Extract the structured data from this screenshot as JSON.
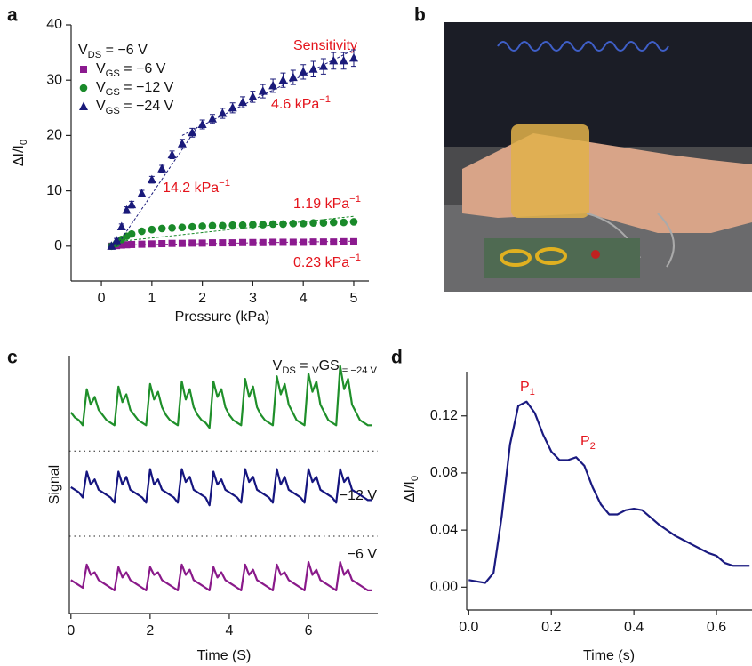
{
  "photo": {
    "label": "b"
  },
  "chart_data": [
    {
      "type": "scatter",
      "label": "a",
      "x_label": "Pressure (kPa)",
      "y_label": [
        "ΔI/I",
        "0"
      ],
      "xlim": [
        -0.6,
        5.3
      ],
      "xticks": [
        0,
        1,
        2,
        3,
        4,
        5
      ],
      "ylim": [
        -6.3,
        40
      ],
      "yticks": [
        0,
        10,
        20,
        30,
        40
      ],
      "legend_title": [
        "V",
        "DS",
        " = −6 V"
      ],
      "x": [
        0.2,
        0.3,
        0.4,
        0.5,
        0.6,
        0.8,
        1.0,
        1.2,
        1.4,
        1.6,
        1.8,
        2.0,
        2.2,
        2.4,
        2.6,
        2.8,
        3.0,
        3.2,
        3.4,
        3.6,
        3.8,
        4.0,
        4.2,
        4.4,
        4.6,
        4.8,
        5.0
      ],
      "series": [
        {
          "name": [
            "V",
            "GS",
            " = −6 V"
          ],
          "color": "#8b1a8f",
          "marker": "square",
          "values": [
            0,
            0.1,
            0.2,
            0.25,
            0.3,
            0.35,
            0.4,
            0.45,
            0.5,
            0.5,
            0.55,
            0.55,
            0.6,
            0.6,
            0.6,
            0.65,
            0.65,
            0.65,
            0.7,
            0.7,
            0.7,
            0.7,
            0.75,
            0.75,
            0.75,
            0.8,
            0.8
          ],
          "fit": {
            "x": [
              0.3,
              5.0
            ],
            "y": [
              0.2,
              0.9
            ]
          }
        },
        {
          "name": [
            "V",
            "GS",
            " = −12 V"
          ],
          "color": "#1a8a2a",
          "marker": "circle",
          "values": [
            0,
            0.5,
            1.2,
            1.8,
            2.2,
            2.7,
            3.0,
            3.2,
            3.3,
            3.4,
            3.5,
            3.6,
            3.7,
            3.7,
            3.8,
            3.8,
            3.9,
            3.9,
            4.0,
            4.0,
            4.1,
            4.1,
            4.2,
            4.2,
            4.3,
            4.3,
            4.4
          ],
          "fit": {
            "x": [
              0.3,
              5.0
            ],
            "y": [
              0.8,
              5.4
            ]
          }
        },
        {
          "name": [
            "V",
            "GS",
            " = −24 V"
          ],
          "color": "#1a1a7a",
          "marker": "triangle",
          "values": [
            0,
            1,
            3.5,
            6.5,
            7.5,
            9.5,
            12,
            14,
            16.5,
            18.5,
            20.5,
            22,
            23,
            24,
            25,
            26,
            27,
            28,
            29,
            30,
            30.5,
            31.5,
            32,
            32.5,
            33.5,
            33.5,
            34
          ],
          "errors": [
            0.3,
            0.4,
            0.5,
            0.6,
            0.6,
            0.6,
            0.6,
            0.6,
            0.7,
            0.8,
            0.8,
            0.8,
            0.8,
            0.9,
            0.9,
            1,
            1,
            1.2,
            1.2,
            1.3,
            1.3,
            1.3,
            1.4,
            1.4,
            1.5,
            1.5,
            1.5
          ],
          "fit": {
            "x": [
              0.3,
              1.9
            ],
            "y": [
              0,
              21.5
            ]
          },
          "fit2": {
            "x": [
              1.6,
              5.0
            ],
            "y": [
              20,
              35.5
            ]
          }
        }
      ],
      "annotations": [
        [
          "Sensitivity"
        ],
        [
          "4.6 kPa",
          "−1"
        ],
        [
          "14.2 kPa",
          "−1"
        ],
        [
          "1.19 kPa",
          "−1"
        ],
        [
          "0.23 kPa",
          "−1"
        ]
      ]
    },
    {
      "type": "line",
      "label": "c",
      "x_label": "Time (S)",
      "y_label": [
        "Signal"
      ],
      "xlim": [
        -0.04,
        7.75
      ],
      "xticks": [
        0,
        2,
        4,
        6
      ],
      "ylim": [
        0,
        10
      ],
      "hlines": [
        6.3,
        3.0
      ],
      "x": [
        0,
        0.1,
        0.2,
        0.3,
        0.4,
        0.5,
        0.6,
        0.7,
        0.8,
        0.9,
        1.0,
        1.1,
        1.2,
        1.3,
        1.4,
        1.5,
        1.6,
        1.7,
        1.8,
        1.9,
        2.0,
        2.1,
        2.2,
        2.3,
        2.4,
        2.5,
        2.6,
        2.7,
        2.8,
        2.9,
        3.0,
        3.1,
        3.2,
        3.3,
        3.4,
        3.5,
        3.6,
        3.7,
        3.8,
        3.9,
        4.0,
        4.1,
        4.2,
        4.3,
        4.4,
        4.5,
        4.6,
        4.7,
        4.8,
        4.9,
        5.0,
        5.1,
        5.2,
        5.3,
        5.4,
        5.5,
        5.6,
        5.7,
        5.8,
        5.9,
        6.0,
        6.1,
        6.2,
        6.3,
        6.4,
        6.5,
        6.6,
        6.7,
        6.8,
        6.9,
        7.0,
        7.1,
        7.2,
        7.3,
        7.4,
        7.5,
        7.6
      ],
      "series": [
        {
          "color": "#1f8f2a",
          "values": [
            7.8,
            7.6,
            7.5,
            7.3,
            8.7,
            8.1,
            8.4,
            7.9,
            7.7,
            7.5,
            7.4,
            7.3,
            8.8,
            8.2,
            8.5,
            7.9,
            7.7,
            7.5,
            7.4,
            7.3,
            8.9,
            8.3,
            8.6,
            8.0,
            7.7,
            7.5,
            7.4,
            7.3,
            9.0,
            8.3,
            8.7,
            8.0,
            7.7,
            7.5,
            7.4,
            7.2,
            9.0,
            8.4,
            8.7,
            8.0,
            7.7,
            7.5,
            7.4,
            7.3,
            9.1,
            8.4,
            8.8,
            8.0,
            7.7,
            7.5,
            7.4,
            7.3,
            9.2,
            8.5,
            8.9,
            8.1,
            7.8,
            7.5,
            7.4,
            7.3,
            9.3,
            8.6,
            9.0,
            8.1,
            7.8,
            7.5,
            7.4,
            7.3,
            9.6,
            8.7,
            9.1,
            8.1,
            7.8,
            7.5,
            7.4,
            7.3,
            7.3
          ]
        },
        {
          "color": "#15157f",
          "values": [
            4.9,
            4.8,
            4.7,
            4.5,
            5.5,
            5.0,
            5.2,
            4.8,
            4.7,
            4.6,
            4.5,
            4.3,
            5.5,
            5.0,
            5.3,
            4.8,
            4.7,
            4.6,
            4.5,
            4.3,
            5.6,
            5.0,
            5.2,
            4.8,
            4.7,
            4.6,
            4.5,
            4.3,
            5.6,
            5.1,
            5.3,
            4.8,
            4.7,
            4.6,
            4.5,
            4.2,
            5.5,
            5.0,
            5.2,
            4.8,
            4.7,
            4.6,
            4.5,
            4.3,
            5.6,
            5.1,
            5.3,
            4.8,
            4.7,
            4.6,
            4.5,
            4.3,
            5.6,
            5.0,
            5.3,
            4.8,
            4.7,
            4.6,
            4.5,
            4.3,
            5.6,
            5.1,
            5.3,
            4.8,
            4.7,
            4.6,
            4.5,
            4.3,
            5.6,
            5.1,
            5.3,
            4.8,
            4.7,
            4.6,
            4.5,
            4.4,
            4.4
          ]
        },
        {
          "color": "#8a1a8a",
          "values": [
            1.3,
            1.2,
            1.1,
            1.0,
            1.9,
            1.5,
            1.6,
            1.3,
            1.2,
            1.1,
            1.0,
            0.9,
            1.8,
            1.4,
            1.6,
            1.3,
            1.2,
            1.1,
            1.0,
            0.9,
            1.8,
            1.5,
            1.6,
            1.3,
            1.2,
            1.1,
            1.0,
            0.9,
            1.9,
            1.5,
            1.7,
            1.3,
            1.2,
            1.1,
            1.0,
            0.9,
            1.8,
            1.4,
            1.6,
            1.3,
            1.2,
            1.1,
            1.0,
            0.9,
            1.9,
            1.5,
            1.7,
            1.3,
            1.2,
            1.1,
            1.0,
            0.9,
            1.9,
            1.5,
            1.6,
            1.3,
            1.2,
            1.1,
            1.0,
            0.9,
            2.0,
            1.5,
            1.7,
            1.3,
            1.2,
            1.1,
            1.0,
            0.9,
            2.0,
            1.5,
            1.7,
            1.3,
            1.2,
            1.1,
            1.0,
            0.9,
            0.9
          ]
        }
      ],
      "annotations": [
        [
          "V",
          "DS",
          " = ",
          "V",
          "GS",
          " = −24 V"
        ],
        [
          "−12 V"
        ],
        [
          "−6 V"
        ]
      ]
    },
    {
      "type": "line",
      "label": "d",
      "x_label": "Time (s)",
      "y_label": [
        "ΔI/I",
        "0"
      ],
      "xlim": [
        -0.005,
        0.686
      ],
      "xticks": [
        {
          "value": 0,
          "label": "0.0"
        },
        0.2,
        0.4,
        0.6
      ],
      "ylim": [
        -0.016,
        0.151
      ],
      "yticks": [
        {
          "value": 0,
          "label": "0.00"
        },
        0.04,
        0.08,
        0.12
      ],
      "x": [
        0,
        0.02,
        0.04,
        0.06,
        0.08,
        0.1,
        0.12,
        0.14,
        0.16,
        0.18,
        0.2,
        0.22,
        0.24,
        0.26,
        0.28,
        0.3,
        0.32,
        0.34,
        0.36,
        0.38,
        0.4,
        0.42,
        0.44,
        0.46,
        0.48,
        0.5,
        0.52,
        0.54,
        0.56,
        0.58,
        0.6,
        0.62,
        0.64,
        0.66,
        0.68
      ],
      "series": [
        {
          "color": "#1a1a80",
          "values": [
            0.005,
            0.004,
            0.003,
            0.01,
            0.05,
            0.1,
            0.127,
            0.13,
            0.122,
            0.107,
            0.095,
            0.089,
            0.089,
            0.091,
            0.085,
            0.07,
            0.058,
            0.051,
            0.051,
            0.054,
            0.055,
            0.054,
            0.049,
            0.044,
            0.04,
            0.036,
            0.033,
            0.03,
            0.027,
            0.024,
            0.022,
            0.017,
            0.015,
            0.015,
            0.015
          ]
        }
      ],
      "annotations": [
        [
          "P",
          "1"
        ],
        [
          "P",
          "2"
        ]
      ]
    }
  ]
}
